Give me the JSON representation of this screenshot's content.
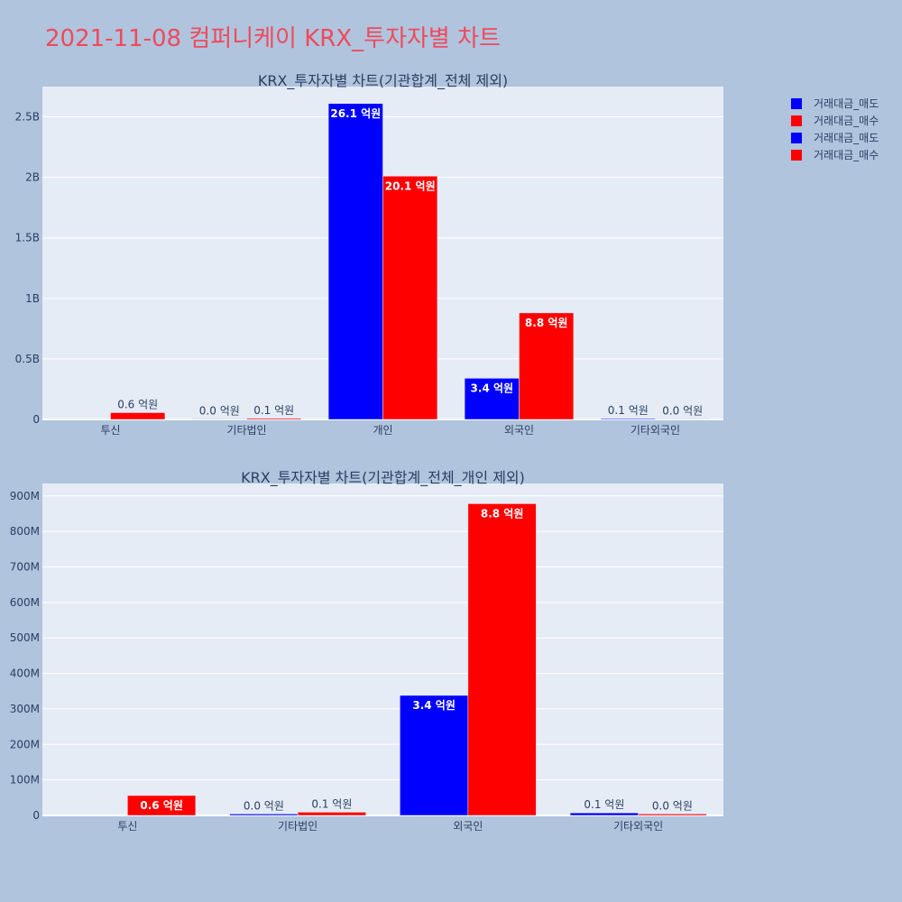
{
  "title": "2021-11-08 컴퍼니케이 KRX_투자자별 차트",
  "legend": [
    {
      "label": "거래대금_매도",
      "color": "#0000ff"
    },
    {
      "label": "거래대금_매수",
      "color": "#ff0000"
    },
    {
      "label": "거래대금_매도",
      "color": "#0000ff"
    },
    {
      "label": "거래대금_매수",
      "color": "#ff0000"
    }
  ],
  "chart_data": [
    {
      "type": "bar",
      "title": "KRX_투자자별 차트(기관합계_전체 제외)",
      "categories": [
        "투신",
        "기타법인",
        "개인",
        "외국인",
        "기타외국인"
      ],
      "ylim": [
        0,
        2750000000
      ],
      "yticks": [
        0,
        500000000,
        1000000000,
        1500000000,
        2000000000,
        2500000000
      ],
      "ytick_labels": [
        "0",
        "0.5B",
        "1B",
        "1.5B",
        "2B",
        "2.5B"
      ],
      "grid": true,
      "legend_position": "top-right",
      "series": [
        {
          "name": "거래대금_매도",
          "color": "#0000ff",
          "values": [
            0,
            4000000,
            2610000000,
            340000000,
            7000000
          ],
          "labels": [
            "",
            "0.0 억원",
            "26.1 억원",
            "3.4 억원",
            "0.1 억원"
          ]
        },
        {
          "name": "거래대금_매수",
          "color": "#ff0000",
          "values": [
            56000000,
            9000000,
            2010000000,
            880000000,
            4000000
          ],
          "labels": [
            "0.6 억원",
            "0.1 억원",
            "20.1 억원",
            "8.8 억원",
            "0.0 억원"
          ]
        }
      ]
    },
    {
      "type": "bar",
      "title": "KRX_투자자별 차트(기관합계_전체_개인 제외)",
      "categories": [
        "투신",
        "기타법인",
        "외국인",
        "기타외국인"
      ],
      "ylim": [
        0,
        935000000
      ],
      "yticks": [
        0,
        100000000,
        200000000,
        300000000,
        400000000,
        500000000,
        600000000,
        700000000,
        800000000,
        900000000
      ],
      "ytick_labels": [
        "0",
        "100M",
        "200M",
        "300M",
        "400M",
        "500M",
        "600M",
        "700M",
        "800M",
        "900M"
      ],
      "grid": true,
      "series": [
        {
          "name": "거래대금_매도",
          "color": "#0000ff",
          "values": [
            0,
            4000000,
            338000000,
            7000000
          ],
          "labels": [
            "",
            "0.0 억원",
            "3.4 억원",
            "0.1 억원"
          ]
        },
        {
          "name": "거래대금_매수",
          "color": "#ff0000",
          "values": [
            56000000,
            9000000,
            878000000,
            4000000
          ],
          "labels": [
            "0.6 억원",
            "0.1 억원",
            "8.8 억원",
            "0.0 억원"
          ]
        }
      ]
    }
  ]
}
